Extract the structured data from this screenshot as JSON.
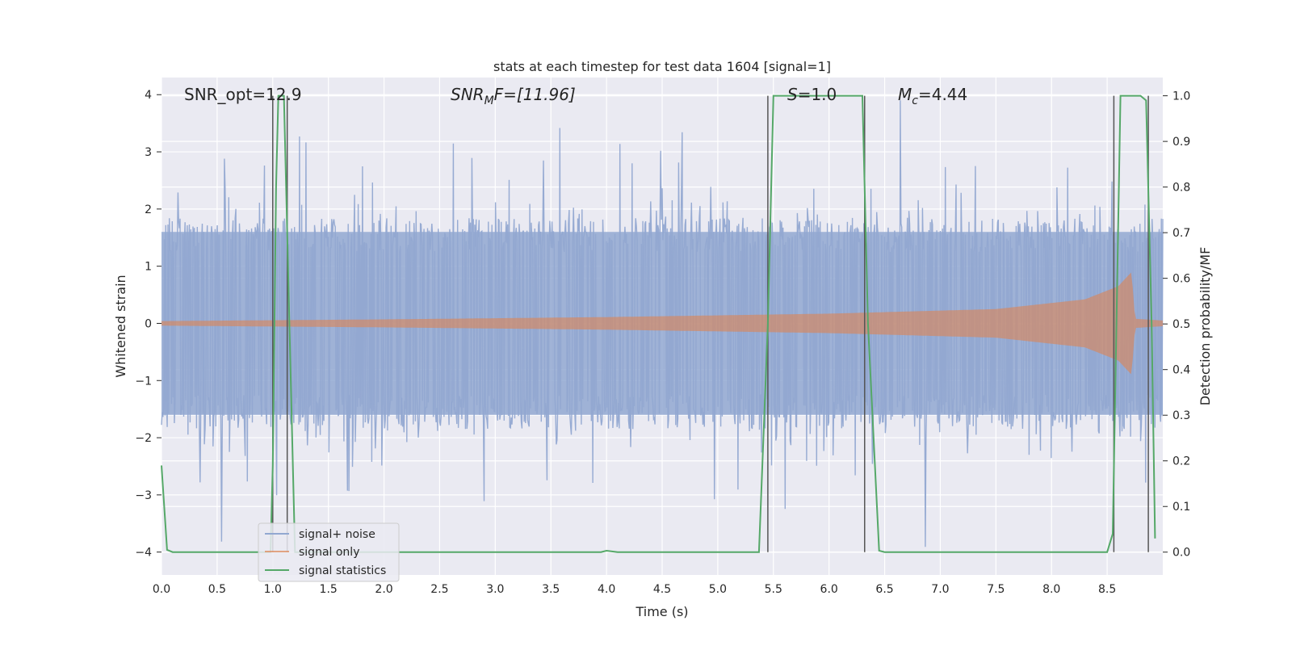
{
  "chart_data": {
    "type": "line",
    "title": "stats at each timestep for test data 1604 [signal=1]",
    "xlabel": "Time (s)",
    "ylabel_left": "Whitened strain",
    "ylabel_right": "Detection probability/MF",
    "xlim": [
      0.0,
      9.0
    ],
    "ylim_left": [
      -4.4,
      4.3
    ],
    "ylim_right": [
      -0.05,
      1.04
    ],
    "x_ticks": [
      "0.0",
      "0.5",
      "1.0",
      "1.5",
      "2.0",
      "2.5",
      "3.0",
      "3.5",
      "4.0",
      "4.5",
      "5.0",
      "5.5",
      "6.0",
      "6.5",
      "7.0",
      "7.5",
      "8.0",
      "8.5"
    ],
    "x_tick_values": [
      0.0,
      0.5,
      1.0,
      1.5,
      2.0,
      2.5,
      3.0,
      3.5,
      4.0,
      4.5,
      5.0,
      5.5,
      6.0,
      6.5,
      7.0,
      7.5,
      8.0,
      8.5
    ],
    "y_left_ticks": [
      "4",
      "3",
      "2",
      "1",
      "0",
      "−1",
      "−2",
      "−3",
      "−4"
    ],
    "y_left_tick_values": [
      4,
      3,
      2,
      1,
      0,
      -1,
      -2,
      -3,
      -4
    ],
    "y_right_ticks": [
      "1.0",
      "0.9",
      "0.8",
      "0.7",
      "0.6",
      "0.5",
      "0.4",
      "0.3",
      "0.2",
      "0.1",
      "0.0"
    ],
    "y_right_tick_values": [
      1.0,
      0.9,
      0.8,
      0.7,
      0.6,
      0.5,
      0.4,
      0.3,
      0.2,
      0.1,
      0.0
    ],
    "grid": true,
    "legend_position": "lower-left",
    "annotations": {
      "snr_opt": "SNR_opt=12.9",
      "snr_mf_main": "SNR",
      "snr_mf_sub": "M",
      "snr_mf_rest": "F=[11.96]",
      "s_main": "S",
      "s_rest": "=1.0",
      "mc_main": "M",
      "mc_sub": "c",
      "mc_rest": "=4.44"
    },
    "series": [
      {
        "name": "signal+ noise",
        "color": "#92a8d1",
        "axis": "left",
        "description_band": {
          "typical_min": -1.6,
          "typical_max": 1.6,
          "peak_min": -4.0,
          "peak_max": 3.9
        }
      },
      {
        "name": "signal only",
        "color": "#dd8452",
        "axis": "left",
        "envelope": {
          "x": [
            0.0,
            2.0,
            4.0,
            6.0,
            7.5,
            8.3,
            8.6,
            8.72,
            8.75,
            9.0
          ],
          "amp": [
            0.04,
            0.07,
            0.11,
            0.17,
            0.25,
            0.42,
            0.65,
            0.9,
            0.08,
            0.05
          ]
        }
      },
      {
        "name": "signal statistics",
        "color": "#55a868",
        "axis": "right",
        "x": [
          0.0,
          0.05,
          0.1,
          0.5,
          0.9,
          0.98,
          1.0,
          1.03,
          1.05,
          1.07,
          1.1,
          1.15,
          1.2,
          1.25,
          1.5,
          2.0,
          3.0,
          3.95,
          4.0,
          4.1,
          4.5,
          5.0,
          5.37,
          5.45,
          5.5,
          6.0,
          6.3,
          6.35,
          6.45,
          6.5,
          7.0,
          8.0,
          8.5,
          8.55,
          8.62,
          8.8,
          8.85,
          8.9,
          8.93
        ],
        "y": [
          0.19,
          0.005,
          0.0,
          0.0,
          0.0,
          0.0,
          0.19,
          0.8,
          1.0,
          1.0,
          1.0,
          0.5,
          0.0,
          0.0,
          0.0,
          0.0,
          0.0,
          0.0,
          0.003,
          0.0,
          0.0,
          0.0,
          0.0,
          0.5,
          1.0,
          1.0,
          1.0,
          0.5,
          0.003,
          0.0,
          0.0,
          0.0,
          0.0,
          0.04,
          1.0,
          1.0,
          0.99,
          0.5,
          0.03
        ]
      }
    ],
    "vertical_lines": [
      {
        "x": 1.0,
        "ymax": 1.0
      },
      {
        "x": 1.13,
        "ymax": 1.0
      },
      {
        "x": 5.45,
        "ymax": 1.0
      },
      {
        "x": 6.32,
        "ymax": 1.0
      },
      {
        "x": 8.56,
        "ymax": 1.0
      },
      {
        "x": 8.87,
        "ymax": 1.0
      }
    ],
    "colors": {
      "axes_bg": "#eaeaf2",
      "grid": "#ffffff",
      "noise": "#92a8d1",
      "signal": "#dd8452",
      "stats": "#55a868",
      "vline": "#555555"
    }
  }
}
